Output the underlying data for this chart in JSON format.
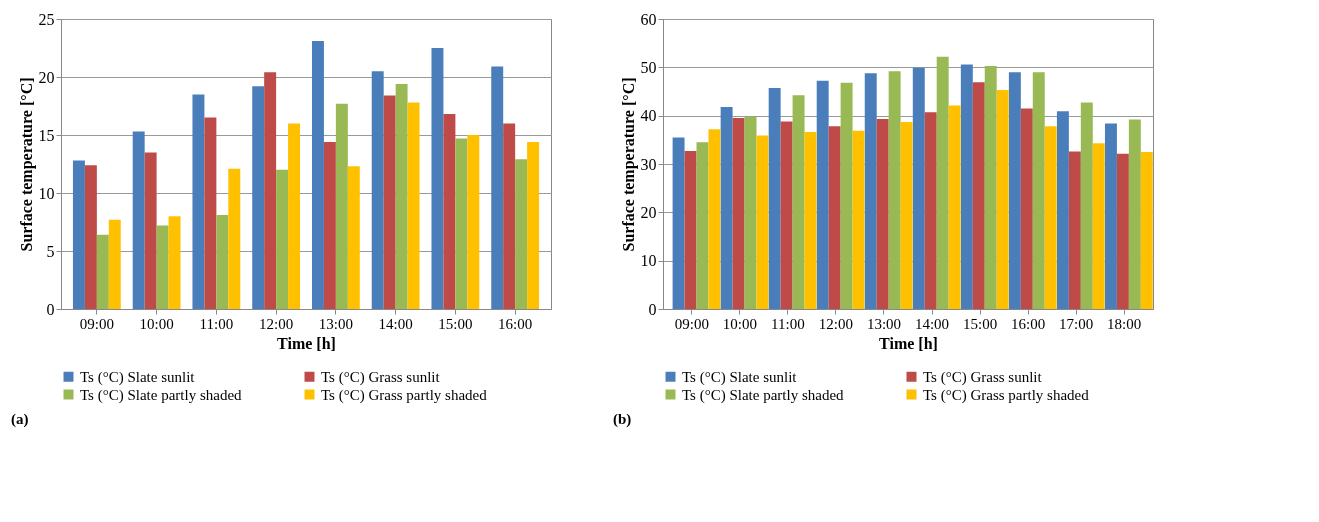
{
  "chart_data": [
    {
      "type": "bar",
      "xlabel": "Time [h]",
      "ylabel": "Surface temperature [°C]",
      "categories": [
        "09:00",
        "10:00",
        "11:00",
        "12:00",
        "13:00",
        "14:00",
        "15:00",
        "16:00"
      ],
      "ylim": [
        0,
        25
      ],
      "yticks": [
        0,
        5,
        10,
        15,
        20,
        25
      ],
      "grid": "y",
      "legend": "bottom",
      "annotations": [
        "(a)"
      ],
      "series": [
        {
          "name": "Ts (°C) Slate sunlit",
          "color": "#4a7ebb",
          "values": [
            12.8,
            15.3,
            18.5,
            19.2,
            23.1,
            20.5,
            22.5,
            20.9
          ]
        },
        {
          "name": "Ts (°C) Grass sunlit",
          "color": "#be4b48",
          "values": [
            12.4,
            13.5,
            16.5,
            20.4,
            14.4,
            18.4,
            16.8,
            16.0
          ]
        },
        {
          "name": "Ts (°C) Slate partly shaded",
          "color": "#98b954",
          "values": [
            6.4,
            7.2,
            8.1,
            12.0,
            17.7,
            19.4,
            14.7,
            12.9
          ]
        },
        {
          "name": "Ts (°C) Grass partly shaded",
          "color": "#ffc000",
          "values": [
            7.7,
            8.0,
            12.1,
            16.0,
            12.3,
            17.8,
            15.0,
            14.4
          ]
        }
      ]
    },
    {
      "type": "bar",
      "xlabel": "Time [h]",
      "ylabel": "Surface temperature [°C]",
      "categories": [
        "09:00",
        "10:00",
        "11:00",
        "12:00",
        "13:00",
        "14:00",
        "15:00",
        "16:00",
        "17:00",
        "18:00"
      ],
      "ylim": [
        0,
        60
      ],
      "yticks": [
        0,
        10,
        20,
        30,
        40,
        50,
        60
      ],
      "grid": "y",
      "legend": "bottom",
      "annotations": [
        "(b)"
      ],
      "series": [
        {
          "name": "Ts (°C) Slate sunlit",
          "color": "#4a7ebb",
          "values": [
            35.5,
            41.8,
            45.7,
            47.2,
            48.8,
            49.9,
            50.6,
            49.0,
            40.9,
            38.4
          ]
        },
        {
          "name": "Ts (°C) Grass sunlit",
          "color": "#be4b48",
          "values": [
            32.7,
            39.5,
            38.8,
            37.8,
            39.3,
            40.7,
            46.9,
            41.5,
            32.6,
            32.1
          ]
        },
        {
          "name": "Ts (°C) Slate partly shaded",
          "color": "#98b954",
          "values": [
            34.5,
            39.8,
            44.2,
            46.8,
            49.2,
            52.2,
            50.3,
            49.0,
            42.7,
            39.2
          ]
        },
        {
          "name": "Ts (°C) Grass partly shaded",
          "color": "#ffc000",
          "values": [
            37.2,
            35.9,
            36.6,
            36.9,
            38.7,
            42.1,
            45.3,
            37.8,
            34.3,
            32.5
          ]
        }
      ]
    }
  ]
}
